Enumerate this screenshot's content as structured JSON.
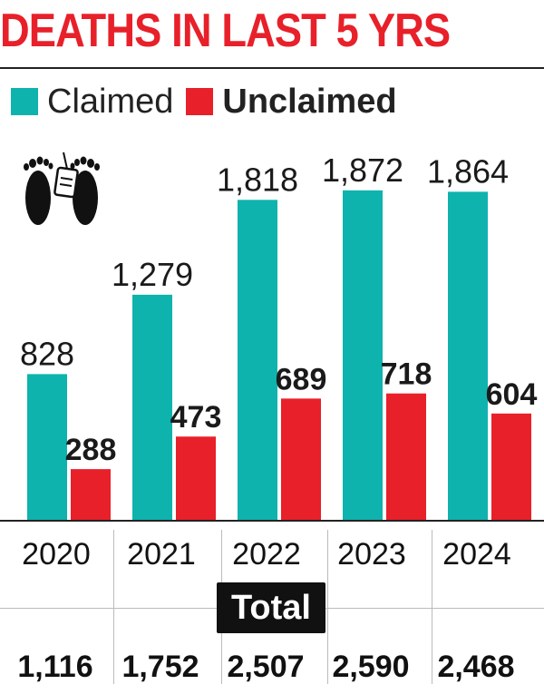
{
  "header": {
    "title": "DEATHS IN LAST 5 YRS"
  },
  "legend": {
    "claimed_label": "Claimed",
    "unclaimed_label": "Unclaimed"
  },
  "colors": {
    "claimed": "#0fb3ad",
    "unclaimed": "#e8202a",
    "title": "#e8202a"
  },
  "icon": {
    "name": "footprints-with-tag-icon"
  },
  "totals": {
    "label": "Total",
    "values": [
      "1,116",
      "1,752",
      "2,507",
      "2,590",
      "2,468"
    ]
  },
  "chart_data": {
    "type": "bar",
    "title": "DEATHS IN LAST 5 YRS",
    "categories": [
      "2020",
      "2021",
      "2022",
      "2023",
      "2024"
    ],
    "series": [
      {
        "name": "Claimed",
        "values": [
          828,
          1279,
          1818,
          1872,
          1864
        ],
        "labels": [
          "828",
          "1,279",
          "1,818",
          "1,872",
          "1,864"
        ]
      },
      {
        "name": "Unclaimed",
        "values": [
          288,
          473,
          689,
          718,
          604
        ],
        "labels": [
          "288",
          "473",
          "689",
          "718",
          "604"
        ]
      }
    ],
    "xlabel": "",
    "ylabel": "",
    "ylim": [
      0,
      2000
    ],
    "grid": false,
    "legend_position": "top-left"
  }
}
